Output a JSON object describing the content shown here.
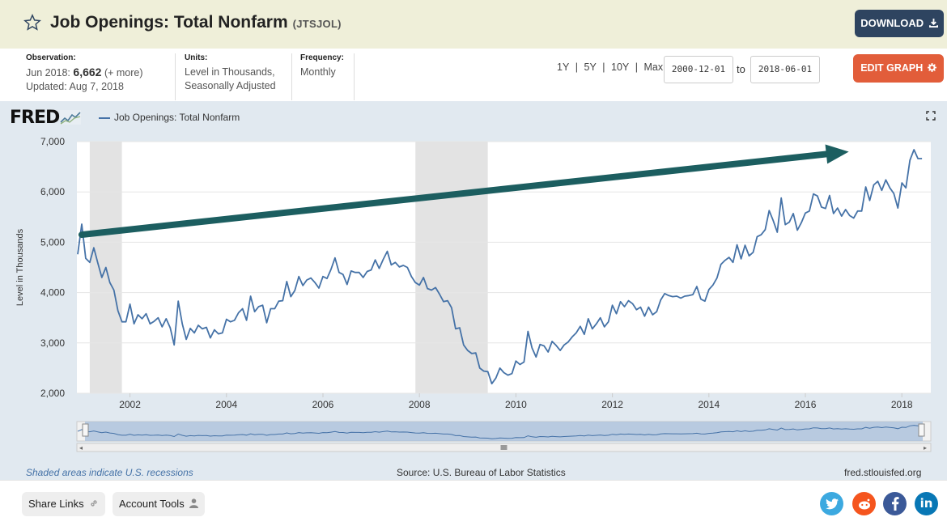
{
  "header": {
    "title": "Job Openings: Total Nonfarm",
    "series_id": "(JTSJOL)",
    "download_label": "DOWNLOAD"
  },
  "meta": {
    "observation_label": "Observation:",
    "observation_period": "Jun 2018:",
    "observation_value": "6,662",
    "observation_more": "(+ more)",
    "updated": "Updated: Aug 7, 2018",
    "units_label": "Units:",
    "units_line1": "Level in Thousands,",
    "units_line2": "Seasonally Adjusted",
    "frequency_label": "Frequency:",
    "frequency_value": "Monthly",
    "ranges": [
      "1Y",
      "5Y",
      "10Y",
      "Max"
    ],
    "range_sep": "|",
    "start_date": "2000-12-01",
    "to_label": "to",
    "end_date": "2018-06-01",
    "edit_label": "EDIT GRAPH"
  },
  "chart_panel": {
    "logo": "FRED",
    "legend_label": "Job Openings: Total Nonfarm",
    "recession_note": "Shaded areas indicate U.S. recessions",
    "source_note": "Source: U.S. Bureau of Labor Statistics",
    "url_note": "fred.stlouisfed.org"
  },
  "footer": {
    "share_label": "Share Links",
    "account_label": "Account Tools"
  },
  "colors": {
    "series": "#4572a7",
    "arrow": "#1c5e60",
    "recession": "#e3e3e3",
    "download": "#2e4460",
    "edit": "#e25d3a"
  },
  "chart_data": {
    "type": "line",
    "ylabel": "Level in Thousands",
    "ylim": [
      2000,
      7000
    ],
    "yticks": [
      2000,
      3000,
      4000,
      5000,
      6000,
      7000
    ],
    "ytick_labels": [
      "2,000",
      "3,000",
      "4,000",
      "5,000",
      "6,000",
      "7,000"
    ],
    "xticks": [
      2002,
      2004,
      2006,
      2008,
      2010,
      2012,
      2014,
      2016,
      2018
    ],
    "xlim": [
      2000.9,
      2018.6
    ],
    "grid": "horizontal",
    "recessions": [
      [
        2001.167,
        2001.833
      ],
      [
        2007.917,
        2009.417
      ]
    ],
    "series": [
      {
        "x_start": 2000.917,
        "step": 0.0833333,
        "values": [
          4760,
          5360,
          4680,
          4600,
          4890,
          4590,
          4300,
          4500,
          4200,
          4050,
          3640,
          3420,
          3420,
          3770,
          3380,
          3560,
          3480,
          3580,
          3380,
          3430,
          3500,
          3320,
          3480,
          3300,
          2960,
          3830,
          3380,
          3070,
          3290,
          3200,
          3350,
          3280,
          3310,
          3100,
          3260,
          3180,
          3200,
          3470,
          3420,
          3450,
          3600,
          3680,
          3450,
          3930,
          3620,
          3720,
          3750,
          3400,
          3680,
          3680,
          3830,
          3840,
          4220,
          3920,
          4040,
          4320,
          4140,
          4250,
          4290,
          4200,
          4090,
          4320,
          4280,
          4460,
          4690,
          4400,
          4360,
          4160,
          4430,
          4400,
          4400,
          4300,
          4420,
          4450,
          4650,
          4480,
          4660,
          4820,
          4550,
          4600,
          4510,
          4540,
          4500,
          4320,
          4200,
          4150,
          4300,
          4080,
          4050,
          4100,
          3970,
          3820,
          3840,
          3700,
          3280,
          3300,
          2960,
          2850,
          2790,
          2800,
          2500,
          2440,
          2430,
          2190,
          2300,
          2500,
          2410,
          2360,
          2390,
          2640,
          2570,
          2620,
          3230,
          2900,
          2720,
          2970,
          2940,
          2820,
          3030,
          2950,
          2850,
          2960,
          3020,
          3120,
          3200,
          3330,
          3170,
          3480,
          3280,
          3380,
          3500,
          3320,
          3420,
          3750,
          3580,
          3820,
          3720,
          3840,
          3780,
          3660,
          3710,
          3530,
          3710,
          3560,
          3620,
          3850,
          3980,
          3940,
          3920,
          3930,
          3890,
          3930,
          3940,
          3960,
          4120,
          3870,
          3830,
          4060,
          4150,
          4290,
          4560,
          4640,
          4700,
          4600,
          4950,
          4670,
          4940,
          4730,
          4800,
          5110,
          5150,
          5250,
          5630,
          5430,
          5200,
          5880,
          5350,
          5400,
          5570,
          5240,
          5390,
          5580,
          5620,
          5960,
          5920,
          5700,
          5670,
          5930,
          5570,
          5680,
          5520,
          5650,
          5530,
          5480,
          5620,
          5620,
          6100,
          5830,
          6140,
          6210,
          6030,
          6240,
          6080,
          5970,
          5680,
          6180,
          6080,
          6630,
          6840,
          6662,
          6662
        ]
      }
    ],
    "annotation_arrow": {
      "from": [
        2001.0,
        5150
      ],
      "to": [
        2016.9,
        6800
      ]
    }
  }
}
